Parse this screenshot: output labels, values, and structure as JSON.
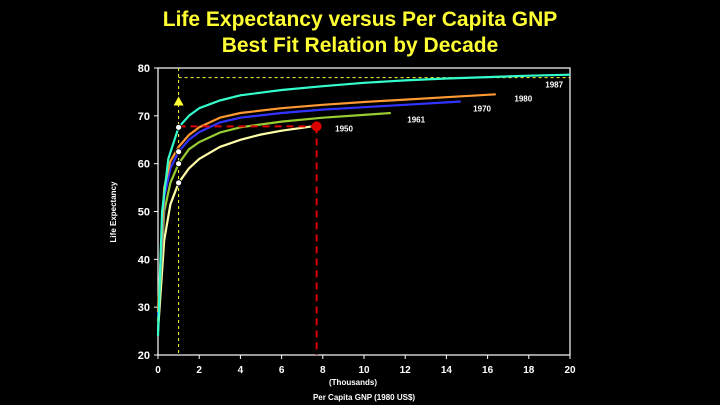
{
  "chart_data": {
    "type": "line",
    "title": "Life Expectancy versus Per Capita GNP",
    "subtitle": "Best Fit Relation by Decade",
    "xlabel": "Per Capita GNP (1980 US$)",
    "x_unit_label": "(Thousands)",
    "ylabel": "Life Expectancy",
    "xlim": [
      0,
      20
    ],
    "ylim": [
      20,
      80
    ],
    "x_ticks": [
      "0",
      "2",
      "4",
      "6",
      "8",
      "10",
      "12",
      "14",
      "16",
      "18",
      "20"
    ],
    "y_ticks": [
      "20",
      "30",
      "40",
      "50",
      "60",
      "70",
      "80"
    ],
    "grid": false,
    "background": "#000000",
    "series": [
      {
        "name": "1950",
        "color": "#ffffaa",
        "label_x": 8.6,
        "label_y": 67.3,
        "x": [
          0.0,
          0.3,
          0.6,
          1.0,
          1.5,
          2.0,
          3.0,
          4.0,
          5.0,
          6.0,
          7.0,
          7.8
        ],
        "y": [
          25.0,
          44.0,
          51.5,
          56.0,
          59.0,
          61.0,
          63.5,
          65.0,
          66.1,
          66.9,
          67.5,
          68.0
        ]
      },
      {
        "name": "1961",
        "color": "#99cc33",
        "label_x": 12.1,
        "label_y": 69.2,
        "x": [
          0.0,
          0.3,
          0.6,
          1.0,
          1.5,
          2.0,
          3.0,
          4.0,
          6.0,
          8.0,
          10.0,
          11.3
        ],
        "y": [
          27.0,
          50.0,
          56.0,
          60.0,
          63.0,
          64.5,
          66.5,
          67.6,
          68.8,
          69.6,
          70.2,
          70.6
        ]
      },
      {
        "name": "1970",
        "color": "#3333ff",
        "label_x": 15.3,
        "label_y": 71.5,
        "x": [
          0.0,
          0.3,
          0.6,
          1.0,
          1.5,
          2.0,
          3.0,
          4.0,
          6.0,
          8.0,
          10.0,
          12.0,
          14.0,
          14.7
        ],
        "y": [
          28.0,
          53.0,
          59.0,
          62.5,
          65.0,
          66.6,
          68.6,
          69.6,
          70.6,
          71.3,
          71.8,
          72.3,
          72.8,
          73.0
        ]
      },
      {
        "name": "1980",
        "color": "#ff9933",
        "label_x": 17.3,
        "label_y": 73.6,
        "x": [
          0.0,
          0.3,
          0.6,
          1.0,
          1.5,
          2.0,
          3.0,
          4.0,
          6.0,
          8.0,
          10.0,
          12.0,
          14.0,
          16.4
        ],
        "y": [
          29.0,
          55.0,
          60.5,
          63.5,
          66.0,
          67.6,
          69.6,
          70.6,
          71.6,
          72.3,
          72.9,
          73.4,
          73.9,
          74.5
        ]
      },
      {
        "name": "1987",
        "color": "#33ffcc",
        "label_x": 18.8,
        "label_y": 76.5,
        "x": [
          0.0,
          0.2,
          0.5,
          1.0,
          1.5,
          2.0,
          3.0,
          4.0,
          6.0,
          8.0,
          10.0,
          12.0,
          14.0,
          16.0,
          18.0,
          20.0
        ],
        "y": [
          24.0,
          50.0,
          61.0,
          67.6,
          70.0,
          71.6,
          73.2,
          74.3,
          75.4,
          76.2,
          76.9,
          77.4,
          77.8,
          78.1,
          78.4,
          78.6
        ]
      }
    ],
    "annotations": {
      "ref_color": "#ffff33",
      "highlight_color": "#dd0000",
      "v_ref_x": 1.0,
      "h_ref_y": 78.0,
      "triangle": {
        "x": 1.0,
        "y": 73.0
      },
      "red_point": {
        "x": 7.7,
        "y": 67.8
      },
      "red_h_line": {
        "x_from": 1.0,
        "x_to": 7.7,
        "y": 67.8
      },
      "white_points": [
        {
          "x": 1.0,
          "y": 56.0
        },
        {
          "x": 1.0,
          "y": 60.0
        },
        {
          "x": 1.0,
          "y": 62.5
        },
        {
          "x": 1.0,
          "y": 67.6
        }
      ]
    }
  }
}
